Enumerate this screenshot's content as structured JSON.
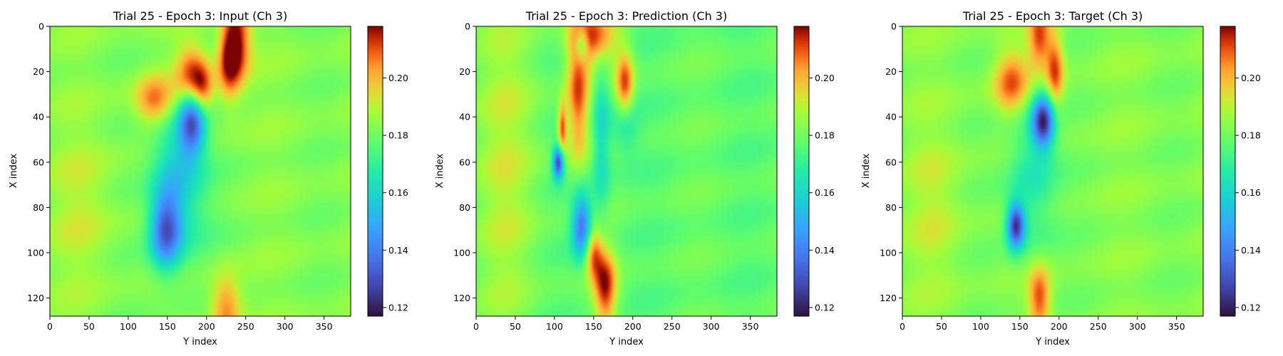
{
  "figure": {
    "panels": [
      {
        "id": "input",
        "title": "Trial 25 - Epoch 3: Input (Ch 3)"
      },
      {
        "id": "prediction",
        "title": "Trial 25 - Epoch 3: Prediction (Ch 3)"
      },
      {
        "id": "target",
        "title": "Trial 25 - Epoch 3: Target (Ch 3)"
      }
    ]
  },
  "chart_data": [
    {
      "type": "heatmap",
      "title": "Trial 25 - Epoch 3: Input (Ch 3)",
      "xlabel": "Y index",
      "ylabel": "X index",
      "xlim": [
        0,
        384
      ],
      "ylim": [
        128,
        0
      ],
      "x_ticks": [
        0,
        50,
        100,
        150,
        200,
        250,
        300,
        350
      ],
      "y_ticks": [
        0,
        20,
        40,
        60,
        80,
        100,
        120
      ],
      "colormap": "turbo",
      "colorbar": {
        "range": [
          0.117,
          0.218
        ],
        "ticks": [
          0.12,
          0.14,
          0.16,
          0.18,
          0.2
        ]
      },
      "background_value": 0.183,
      "features": [
        {
          "x": 240,
          "y": 5,
          "sx": 12,
          "sy": 14,
          "value": 0.215
        },
        {
          "x": 228,
          "y": 15,
          "sx": 10,
          "sy": 12,
          "value": 0.212
        },
        {
          "x": 180,
          "y": 22,
          "sx": 14,
          "sy": 10,
          "value": 0.212
        },
        {
          "x": 135,
          "y": 33,
          "sx": 18,
          "sy": 8,
          "value": 0.21
        },
        {
          "x": 195,
          "y": 28,
          "sx": 10,
          "sy": 8,
          "value": 0.208
        },
        {
          "x": 182,
          "y": 42,
          "sx": 12,
          "sy": 10,
          "value": 0.135
        },
        {
          "x": 160,
          "y": 55,
          "sx": 22,
          "sy": 18,
          "value": 0.165
        },
        {
          "x": 148,
          "y": 90,
          "sx": 14,
          "sy": 12,
          "value": 0.138
        },
        {
          "x": 170,
          "y": 80,
          "sx": 25,
          "sy": 20,
          "value": 0.168
        },
        {
          "x": 225,
          "y": 124,
          "sx": 14,
          "sy": 10,
          "value": 0.208
        },
        {
          "x": 40,
          "y": 80,
          "sx": 30,
          "sy": 25,
          "value": 0.19
        }
      ]
    },
    {
      "type": "heatmap",
      "title": "Trial 25 - Epoch 3: Prediction (Ch 3)",
      "xlabel": "Y index",
      "ylabel": "X index",
      "xlim": [
        0,
        384
      ],
      "ylim": [
        128,
        0
      ],
      "x_ticks": [
        0,
        50,
        100,
        150,
        200,
        250,
        300,
        350
      ],
      "y_ticks": [
        0,
        20,
        40,
        60,
        80,
        100,
        120
      ],
      "colormap": "turbo",
      "colorbar": {
        "range": [
          0.117,
          0.218
        ],
        "ticks": [
          0.12,
          0.14,
          0.16,
          0.18,
          0.2
        ]
      },
      "background_value": 0.178,
      "features": [
        {
          "x": 150,
          "y": 5,
          "sx": 20,
          "sy": 8,
          "value": 0.212
        },
        {
          "x": 130,
          "y": 30,
          "sx": 10,
          "sy": 20,
          "value": 0.21
        },
        {
          "x": 190,
          "y": 25,
          "sx": 8,
          "sy": 10,
          "value": 0.21
        },
        {
          "x": 135,
          "y": 8,
          "sx": 6,
          "sy": 5,
          "value": 0.15
        },
        {
          "x": 105,
          "y": 60,
          "sx": 5,
          "sy": 5,
          "value": 0.125
        },
        {
          "x": 110,
          "y": 45,
          "sx": 4,
          "sy": 8,
          "value": 0.21
        },
        {
          "x": 160,
          "y": 50,
          "sx": 8,
          "sy": 25,
          "value": 0.16
        },
        {
          "x": 190,
          "y": 45,
          "sx": 12,
          "sy": 8,
          "value": 0.165
        },
        {
          "x": 135,
          "y": 88,
          "sx": 9,
          "sy": 10,
          "value": 0.135
        },
        {
          "x": 165,
          "y": 115,
          "sx": 10,
          "sy": 12,
          "value": 0.215
        },
        {
          "x": 150,
          "y": 100,
          "sx": 8,
          "sy": 8,
          "value": 0.208
        },
        {
          "x": 40,
          "y": 60,
          "sx": 30,
          "sy": 60,
          "value": 0.19
        }
      ]
    },
    {
      "type": "heatmap",
      "title": "Trial 25 - Epoch 3: Target (Ch 3)",
      "xlabel": "Y index",
      "ylabel": "X index",
      "xlim": [
        0,
        384
      ],
      "ylim": [
        128,
        0
      ],
      "x_ticks": [
        0,
        50,
        100,
        150,
        200,
        250,
        300,
        350
      ],
      "y_ticks": [
        0,
        20,
        40,
        60,
        80,
        100,
        120
      ],
      "colormap": "turbo",
      "colorbar": {
        "range": [
          0.117,
          0.218
        ],
        "ticks": [
          0.12,
          0.14,
          0.16,
          0.18,
          0.2
        ]
      },
      "background_value": 0.183,
      "features": [
        {
          "x": 175,
          "y": 5,
          "sx": 10,
          "sy": 10,
          "value": 0.212
        },
        {
          "x": 140,
          "y": 25,
          "sx": 16,
          "sy": 10,
          "value": 0.21
        },
        {
          "x": 195,
          "y": 20,
          "sx": 8,
          "sy": 12,
          "value": 0.212
        },
        {
          "x": 180,
          "y": 42,
          "sx": 10,
          "sy": 8,
          "value": 0.128
        },
        {
          "x": 165,
          "y": 65,
          "sx": 22,
          "sy": 25,
          "value": 0.165
        },
        {
          "x": 145,
          "y": 88,
          "sx": 8,
          "sy": 7,
          "value": 0.128
        },
        {
          "x": 175,
          "y": 120,
          "sx": 10,
          "sy": 10,
          "value": 0.212
        },
        {
          "x": 40,
          "y": 80,
          "sx": 25,
          "sy": 25,
          "value": 0.19
        }
      ]
    }
  ]
}
